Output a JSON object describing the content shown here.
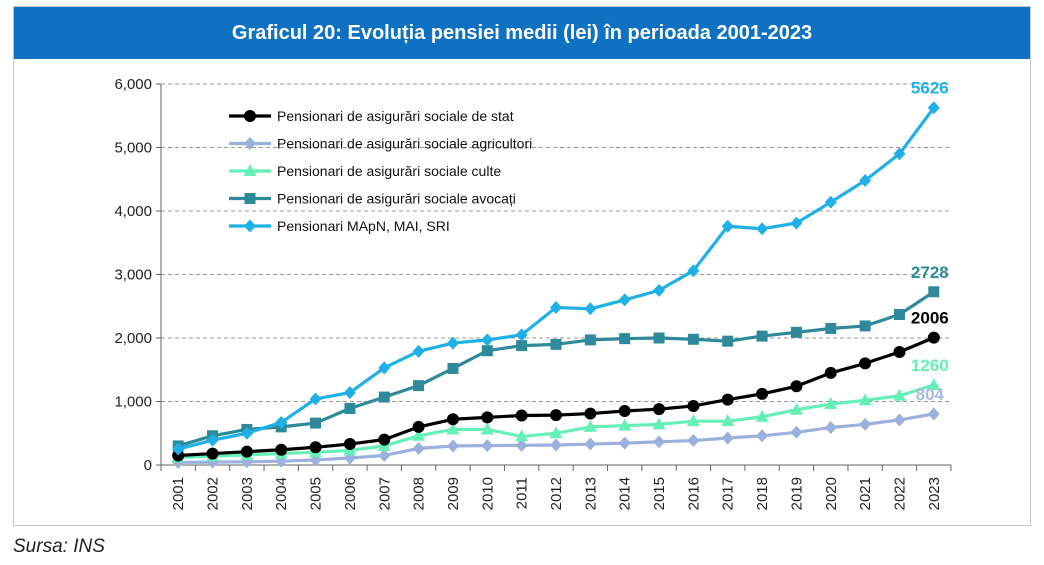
{
  "source": "Sursa: INS",
  "chart_data": {
    "type": "line",
    "title": "Graficul 20: Evoluția pensiei medii (lei) în perioada 2001-2023",
    "xlabel": "",
    "ylabel": "",
    "ylim": [
      0,
      6000
    ],
    "yticks": [
      "0",
      "1,000",
      "2,000",
      "3,000",
      "4,000",
      "5,000",
      "6,000"
    ],
    "ytick_values": [
      0,
      1000,
      2000,
      3000,
      4000,
      5000,
      6000
    ],
    "grid": "horizontal dashed",
    "legend_position": "top-left",
    "categories": [
      "2001",
      "2002",
      "2003",
      "2004",
      "2005",
      "2006",
      "2007",
      "2008",
      "2009",
      "2010",
      "2011",
      "2012",
      "2013",
      "2014",
      "2015",
      "2016",
      "2017",
      "2018",
      "2019",
      "2020",
      "2021",
      "2022",
      "2023"
    ],
    "series": [
      {
        "name": "Pensionari de asigurări sociale de stat",
        "color": "#000000",
        "marker": "circle",
        "end_label": "2006",
        "end_label_color": "#000000",
        "values": [
          150,
          180,
          210,
          240,
          280,
          330,
          400,
          600,
          720,
          750,
          780,
          785,
          810,
          850,
          880,
          930,
          1030,
          1120,
          1240,
          1450,
          1600,
          1780,
          2006
        ]
      },
      {
        "name": "Pensionari de asigurări sociale agricultori",
        "color": "#9bb0dc",
        "marker": "diamond",
        "end_label": "804",
        "end_label_color": "#aab9dd",
        "values": [
          40,
          45,
          50,
          60,
          80,
          110,
          150,
          260,
          300,
          305,
          310,
          315,
          330,
          345,
          365,
          385,
          425,
          460,
          515,
          590,
          640,
          710,
          804
        ]
      },
      {
        "name": "Pensionari de asigurări sociale culte",
        "color": "#66f0b8",
        "marker": "triangle",
        "end_label": "1260",
        "end_label_color": "#66f0b8",
        "values": [
          120,
          140,
          160,
          180,
          200,
          230,
          300,
          460,
          560,
          560,
          450,
          500,
          600,
          620,
          640,
          690,
          690,
          760,
          870,
          960,
          1020,
          1090,
          1260
        ]
      },
      {
        "name": "Pensionari de asigurări sociale avocați",
        "color": "#2e8a9a",
        "marker": "square",
        "end_label": "2728",
        "end_label_color": "#2e8a9a",
        "values": [
          300,
          460,
          560,
          600,
          660,
          890,
          1070,
          1250,
          1520,
          1800,
          1880,
          1900,
          1970,
          1990,
          2000,
          1980,
          1950,
          2030,
          2090,
          2150,
          2190,
          2370,
          2728
        ]
      },
      {
        "name": "Pensionari MApN, MAI, SRI",
        "color": "#1eb0e6",
        "marker": "diamond",
        "end_label": "5626",
        "end_label_color": "#1eb0e6",
        "values": [
          250,
          390,
          500,
          670,
          1040,
          1140,
          1530,
          1790,
          1920,
          1970,
          2050,
          2480,
          2460,
          2600,
          2750,
          3060,
          3760,
          3720,
          3810,
          4140,
          4480,
          4900,
          5626
        ]
      }
    ]
  }
}
